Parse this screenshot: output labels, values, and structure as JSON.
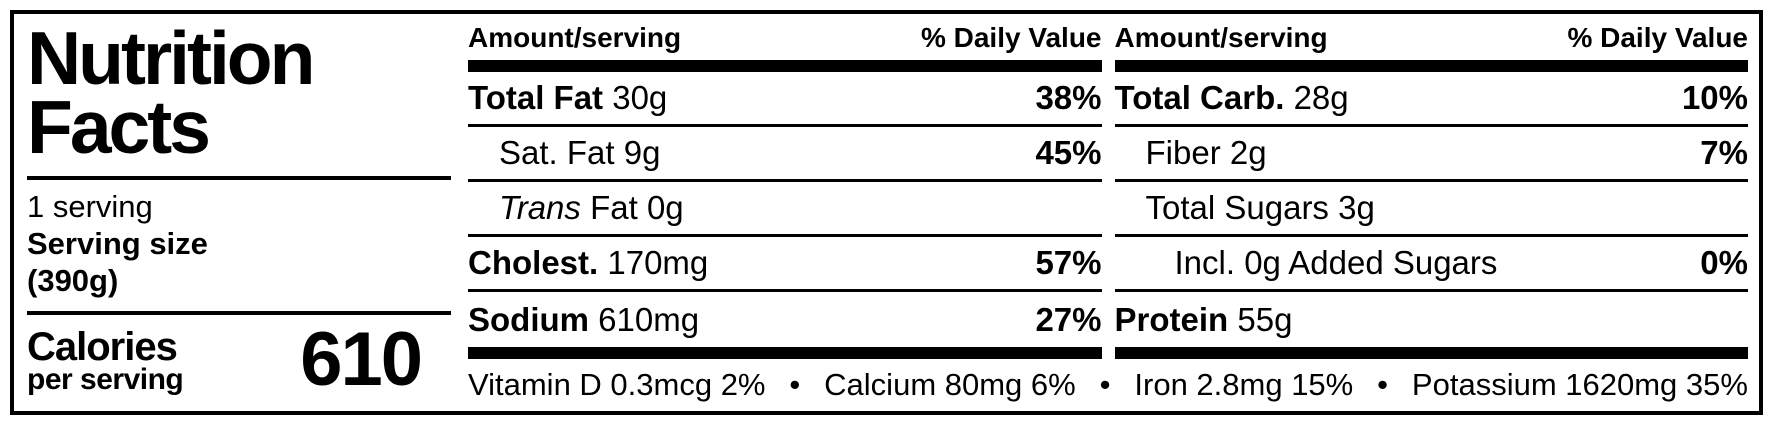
{
  "panel": {
    "title_line1": "Nutrition",
    "title_line2": "Facts",
    "servings": "1 serving",
    "serving_size_label": "Serving size",
    "serving_size_value": "(390g)",
    "calories_label": "Calories",
    "calories_subtitle": "per serving",
    "calories_value": "610"
  },
  "table": {
    "header_amount": "Amount/serving",
    "header_dv": "% Daily Value",
    "columns": [
      {
        "rows": [
          {
            "name": "Total Fat",
            "amount": "30g",
            "dv": "38%"
          },
          {
            "name": "Sat. Fat",
            "amount": "9g",
            "dv": "45%"
          },
          {
            "name_italic": "Trans",
            "name": "Fat",
            "amount": "0g",
            "dv": ""
          },
          {
            "name": "Cholest.",
            "amount": "170mg",
            "dv": "57%"
          },
          {
            "name": "Sodium",
            "amount": "610mg",
            "dv": "27%"
          }
        ]
      },
      {
        "rows": [
          {
            "name": "Total Carb.",
            "amount": "28g",
            "dv": "10%"
          },
          {
            "name": "Fiber",
            "amount": "2g",
            "dv": "7%"
          },
          {
            "name": "Total Sugars",
            "amount": "3g",
            "dv": ""
          },
          {
            "name": "Incl. 0g Added Sugars",
            "amount": "",
            "dv": "0%"
          },
          {
            "name": "Protein",
            "amount": "55g",
            "dv": ""
          }
        ]
      }
    ],
    "bullet": "•",
    "footnote_items": [
      "Vitamin D 0.3mcg 2%",
      "Calcium 80mg 6%",
      "Iron 2.8mg 15%",
      "Potassium 1620mg 35%"
    ]
  }
}
